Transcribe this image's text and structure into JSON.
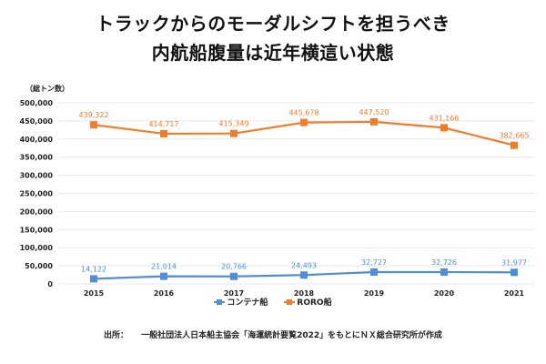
{
  "header": {
    "title_line1": "トラックからのモーダルシフトを担うべき",
    "title_line2": "内航船腹量は近年横這い状態"
  },
  "source": {
    "label": "出所：",
    "text": "一般社団法人日本船主協会「海運統計要覧2022」をもとにＮＸ総合研究所が作成"
  },
  "chart_data": {
    "type": "line",
    "title": "トラックからのモーダルシフトを担うべき 内航船腹量は近年横這い状態",
    "xlabel": "",
    "ylabel": "（総トン数）",
    "categories": [
      "2015",
      "2016",
      "2017",
      "2018",
      "2019",
      "2020",
      "2021"
    ],
    "ylim": [
      0,
      500000
    ],
    "yticks": [
      0,
      50000,
      100000,
      150000,
      200000,
      250000,
      300000,
      350000,
      400000,
      450000,
      500000
    ],
    "ytick_labels": [
      "0",
      "50,000",
      "100,000",
      "150,000",
      "200,000",
      "250,000",
      "300,000",
      "350,000",
      "400,000",
      "450,000",
      "500,000"
    ],
    "grid": true,
    "legend_position": "bottom",
    "series": [
      {
        "name": "コンテナ船",
        "color": "#4f8fd6",
        "values": [
          14122,
          21014,
          20766,
          24493,
          32727,
          32726,
          31977
        ],
        "labels": [
          "14,122",
          "21,014",
          "20,766",
          "24,493",
          "32,727",
          "32,726",
          "31,977"
        ]
      },
      {
        "name": "RORO船",
        "color": "#f07c2d",
        "values": [
          439322,
          414717,
          415349,
          445678,
          447520,
          431166,
          382665
        ],
        "labels": [
          "439,322",
          "414,717",
          "415,349",
          "445,678",
          "447,520",
          "431,166",
          "382,665"
        ]
      }
    ]
  }
}
